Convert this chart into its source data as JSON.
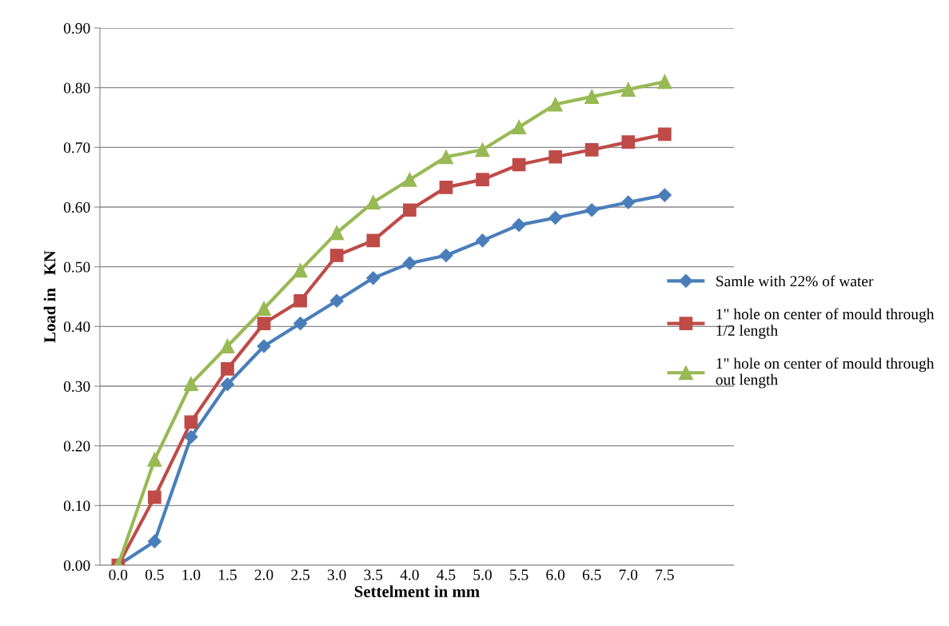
{
  "chart_data": {
    "type": "line",
    "xlabel": "Settelment in mm",
    "ylabel": "Load in   KN",
    "categories": [
      "0.0",
      "0.5",
      "1.0",
      "1.5",
      "2.0",
      "2.5",
      "3.0",
      "3.5",
      "4.0",
      "4.5",
      "5.0",
      "5.5",
      "6.0",
      "6.5",
      "7.0",
      "7.5"
    ],
    "series": [
      {
        "name": "Samle with 22% of water",
        "color": "#4a7ebb",
        "marker": "diamond",
        "values": [
          0,
          0.04,
          0.215,
          0.303,
          0.367,
          0.405,
          0.443,
          0.481,
          0.506,
          0.519,
          0.544,
          0.57,
          0.582,
          0.595,
          0.608,
          0.62
        ]
      },
      {
        "name": "1\" hole on center of mould through 1/2 length",
        "color": "#be4b48",
        "marker": "square",
        "values": [
          0,
          0.114,
          0.24,
          0.329,
          0.405,
          0.443,
          0.519,
          0.544,
          0.595,
          0.633,
          0.646,
          0.671,
          0.684,
          0.696,
          0.709,
          0.722
        ]
      },
      {
        "name": "1\" hole on center of mould through out length",
        "color": "#98b954",
        "marker": "triangle",
        "values": [
          0,
          0.177,
          0.304,
          0.367,
          0.43,
          0.494,
          0.557,
          0.608,
          0.646,
          0.684,
          0.696,
          0.734,
          0.772,
          0.785,
          0.797,
          0.81
        ]
      }
    ],
    "ylim": [
      0,
      0.9
    ],
    "yticks": [
      {
        "value": 0,
        "label": "0.00"
      },
      {
        "value": 0.1,
        "label": "0.10"
      },
      {
        "value": 0.2,
        "label": "0.20"
      },
      {
        "value": 0.3,
        "label": "0.30"
      },
      {
        "value": 0.4,
        "label": "0.40"
      },
      {
        "value": 0.5,
        "label": "0.50"
      },
      {
        "value": 0.6,
        "label": "0.60"
      },
      {
        "value": 0.7,
        "label": "0.70"
      },
      {
        "value": 0.8,
        "label": "0.80"
      },
      {
        "value": 0.9,
        "label": "0.90"
      }
    ],
    "grid": "y",
    "legend": "right",
    "line_style": "solid"
  }
}
